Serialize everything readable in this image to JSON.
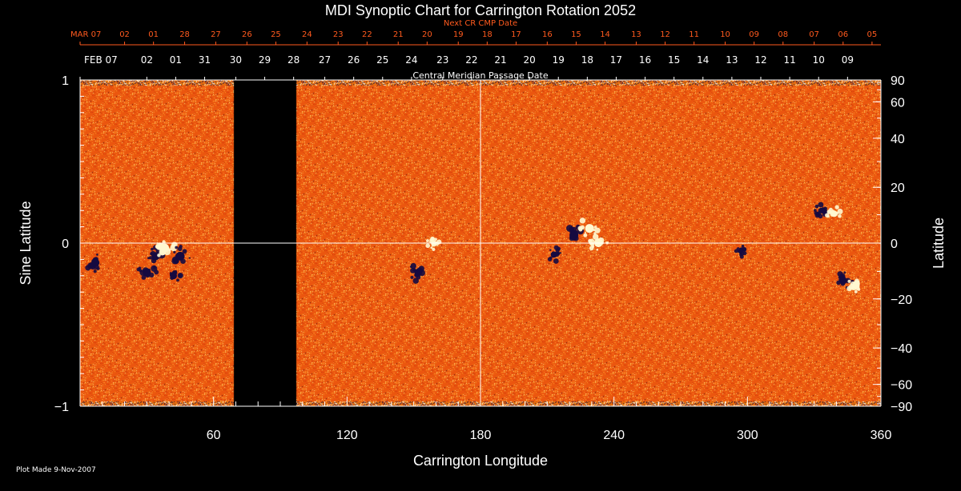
{
  "chart_data": {
    "type": "heatmap",
    "title": "MDI Synoptic Chart for Carrington Rotation 2052",
    "xlabel": "Carrington Longitude",
    "ylabel_left": "Sine Latitude",
    "ylabel_right": "Latitude",
    "top_axis_next_label": "Next CR CMP Date",
    "top_axis_cmp_label": "Central Meridian Passage Date",
    "footer": "Plot Made  9-Nov-2007",
    "xlim": [
      0,
      360
    ],
    "ylim_sine": [
      -1,
      1
    ],
    "x_ticks": [
      60,
      120,
      180,
      240,
      300,
      360
    ],
    "y_ticks_left": [
      {
        "value": 1,
        "label": "1"
      },
      {
        "value": 0,
        "label": "0"
      },
      {
        "value": -1,
        "label": "−1"
      }
    ],
    "y_ticks_right": [
      90,
      60,
      40,
      20,
      0,
      -20,
      -40,
      -60,
      -90
    ],
    "next_cr_dates": [
      {
        "lon": 0,
        "label": "MAR 07"
      },
      {
        "lon": 20,
        "label": "02"
      },
      {
        "lon": 33,
        "label": "01"
      },
      {
        "lon": 47,
        "label": "28"
      },
      {
        "lon": 61,
        "label": "27"
      },
      {
        "lon": 75,
        "label": "26"
      },
      {
        "lon": 88,
        "label": "25"
      },
      {
        "lon": 102,
        "label": "24"
      },
      {
        "lon": 116,
        "label": "23"
      },
      {
        "lon": 129,
        "label": "22"
      },
      {
        "lon": 143,
        "label": "21"
      },
      {
        "lon": 156,
        "label": "20"
      },
      {
        "lon": 170,
        "label": "19"
      },
      {
        "lon": 183,
        "label": "18"
      },
      {
        "lon": 196,
        "label": "17"
      },
      {
        "lon": 210,
        "label": "16"
      },
      {
        "lon": 223,
        "label": "15"
      },
      {
        "lon": 236,
        "label": "14"
      },
      {
        "lon": 250,
        "label": "13"
      },
      {
        "lon": 263,
        "label": "12"
      },
      {
        "lon": 276,
        "label": "11"
      },
      {
        "lon": 290,
        "label": "10"
      },
      {
        "lon": 303,
        "label": "09"
      },
      {
        "lon": 316,
        "label": "08"
      },
      {
        "lon": 330,
        "label": "07"
      },
      {
        "lon": 343,
        "label": "06"
      },
      {
        "lon": 356,
        "label": "05"
      }
    ],
    "cmp_dates": [
      {
        "lon": 0,
        "label": "FEB 07"
      },
      {
        "lon": 30,
        "label": "02"
      },
      {
        "lon": 43,
        "label": "01"
      },
      {
        "lon": 56,
        "label": "31"
      },
      {
        "lon": 70,
        "label": "30"
      },
      {
        "lon": 83,
        "label": "29"
      },
      {
        "lon": 96,
        "label": "28"
      },
      {
        "lon": 110,
        "label": "27"
      },
      {
        "lon": 123,
        "label": "26"
      },
      {
        "lon": 136,
        "label": "25"
      },
      {
        "lon": 149,
        "label": "24"
      },
      {
        "lon": 163,
        "label": "23"
      },
      {
        "lon": 176,
        "label": "22"
      },
      {
        "lon": 189,
        "label": "21"
      },
      {
        "lon": 202,
        "label": "20"
      },
      {
        "lon": 215,
        "label": "19"
      },
      {
        "lon": 228,
        "label": "18"
      },
      {
        "lon": 241,
        "label": "17"
      },
      {
        "lon": 254,
        "label": "16"
      },
      {
        "lon": 267,
        "label": "15"
      },
      {
        "lon": 280,
        "label": "14"
      },
      {
        "lon": 293,
        "label": "13"
      },
      {
        "lon": 306,
        "label": "12"
      },
      {
        "lon": 319,
        "label": "11"
      },
      {
        "lon": 332,
        "label": "10"
      },
      {
        "lon": 345,
        "label": "09"
      }
    ],
    "data_gap_lon": [
      69,
      97
    ],
    "active_regions": [
      {
        "lon": 7,
        "sinlat": -0.12,
        "polarity": "negative",
        "strength": 0.8
      },
      {
        "lon": 30,
        "sinlat": -0.18,
        "polarity": "negative",
        "strength": 0.9
      },
      {
        "lon": 34,
        "sinlat": -0.08,
        "polarity": "negative",
        "strength": 0.9
      },
      {
        "lon": 38,
        "sinlat": -0.03,
        "polarity": "positive",
        "strength": 1.0
      },
      {
        "lon": 45,
        "sinlat": -0.08,
        "polarity": "negative",
        "strength": 1.0
      },
      {
        "lon": 42,
        "sinlat": -0.2,
        "polarity": "negative",
        "strength": 0.7
      },
      {
        "lon": 152,
        "sinlat": -0.18,
        "polarity": "negative",
        "strength": 0.8
      },
      {
        "lon": 159,
        "sinlat": 0.0,
        "polarity": "positive",
        "strength": 0.5
      },
      {
        "lon": 213,
        "sinlat": -0.07,
        "polarity": "negative",
        "strength": 0.6
      },
      {
        "lon": 222,
        "sinlat": 0.05,
        "polarity": "negative",
        "strength": 1.0
      },
      {
        "lon": 229,
        "sinlat": 0.09,
        "polarity": "positive",
        "strength": 1.0
      },
      {
        "lon": 233,
        "sinlat": 0.0,
        "polarity": "positive",
        "strength": 0.9
      },
      {
        "lon": 297,
        "sinlat": -0.05,
        "polarity": "negative",
        "strength": 0.4
      },
      {
        "lon": 334,
        "sinlat": 0.2,
        "polarity": "negative",
        "strength": 0.6
      },
      {
        "lon": 339,
        "sinlat": 0.18,
        "polarity": "positive",
        "strength": 0.6
      },
      {
        "lon": 343,
        "sinlat": -0.23,
        "polarity": "negative",
        "strength": 0.8
      },
      {
        "lon": 349,
        "sinlat": -0.25,
        "polarity": "positive",
        "strength": 0.7
      }
    ],
    "colors": {
      "background": "#000000",
      "field_base": "#e8460f",
      "positive": "#fff8d0",
      "negative": "#150a40",
      "text": "#ffffff",
      "next_cr_text": "#ff5a1e"
    },
    "grid": "meridian-and-equator"
  }
}
